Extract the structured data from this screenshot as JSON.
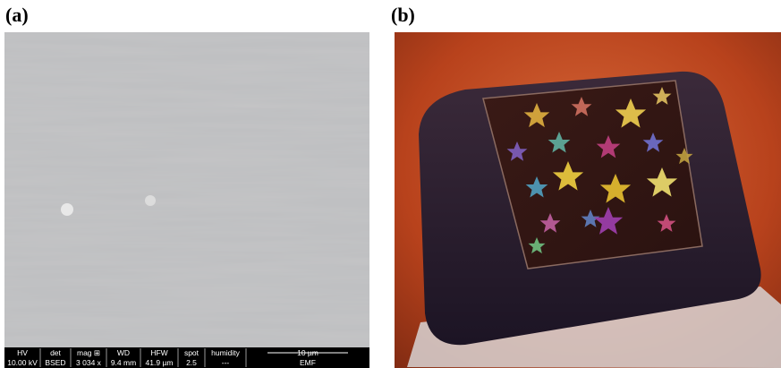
{
  "panels": [
    {
      "label": "(a)"
    },
    {
      "label": "(b)"
    }
  ],
  "sem_bar": {
    "columns": [
      {
        "header": "HV",
        "value": "10.00 kV"
      },
      {
        "header": "det",
        "value": "BSED"
      },
      {
        "header": "mag ⊞",
        "value": "3 034 x"
      },
      {
        "header": "WD",
        "value": "9.4 mm"
      },
      {
        "header": "HFW",
        "value": "41.9 µm"
      },
      {
        "header": "spot",
        "value": "2.5"
      },
      {
        "header": "humidity",
        "value": "---"
      }
    ],
    "scale": "10 µm",
    "label": "EMF"
  }
}
